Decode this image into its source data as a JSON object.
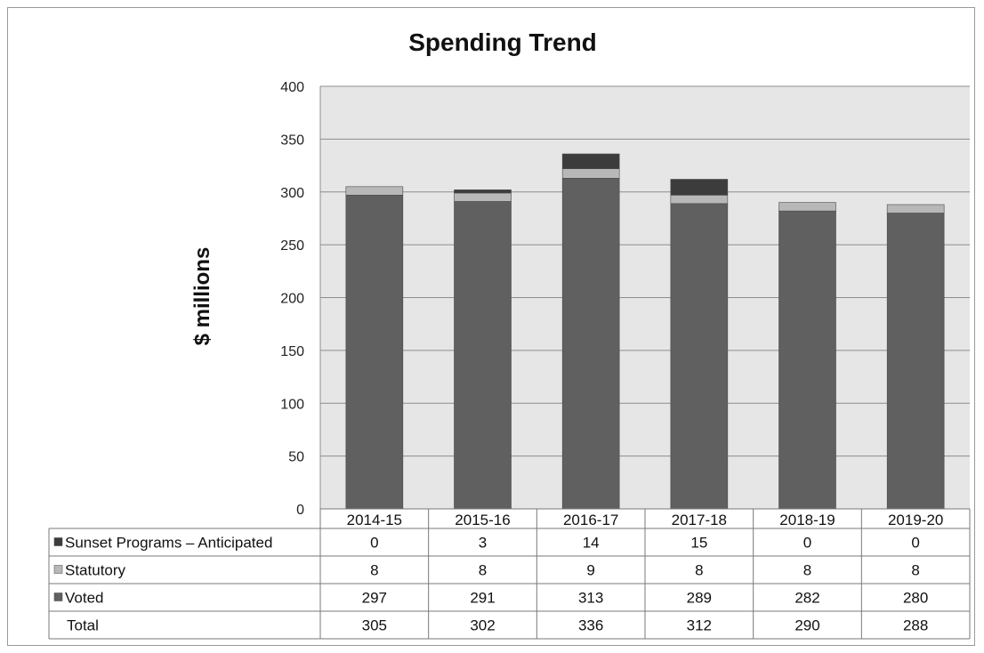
{
  "chart_data": {
    "type": "bar",
    "stacked": true,
    "title": "Spending Trend",
    "ylabel": "$ millions",
    "xlabel": "",
    "ylim": [
      0,
      400
    ],
    "yticks": [
      0,
      50,
      100,
      150,
      200,
      250,
      300,
      350,
      400
    ],
    "grid": true,
    "categories": [
      "2014-15",
      "2015-16",
      "2016-17",
      "2017-18",
      "2018-19",
      "2019-20"
    ],
    "series": [
      {
        "name": "Voted",
        "values": [
          297,
          291,
          313,
          289,
          282,
          280
        ],
        "color": "#606060"
      },
      {
        "name": "Statutory",
        "values": [
          8,
          8,
          9,
          8,
          8,
          8
        ],
        "color": "#b8b8b8"
      },
      {
        "name": "Sunset Programs – Anticipated",
        "values": [
          0,
          3,
          14,
          15,
          0,
          0
        ],
        "color": "#3c3c3c"
      }
    ],
    "table_rows": [
      "Sunset Programs – Anticipated",
      "Statutory",
      "Voted"
    ],
    "total_label": "Total",
    "totals": [
      305,
      302,
      336,
      312,
      290,
      288
    ]
  },
  "colors": {
    "plot_background": "#e6e6e6",
    "gridline": "#8c8c8c",
    "table_border": "#7a7a7a"
  }
}
